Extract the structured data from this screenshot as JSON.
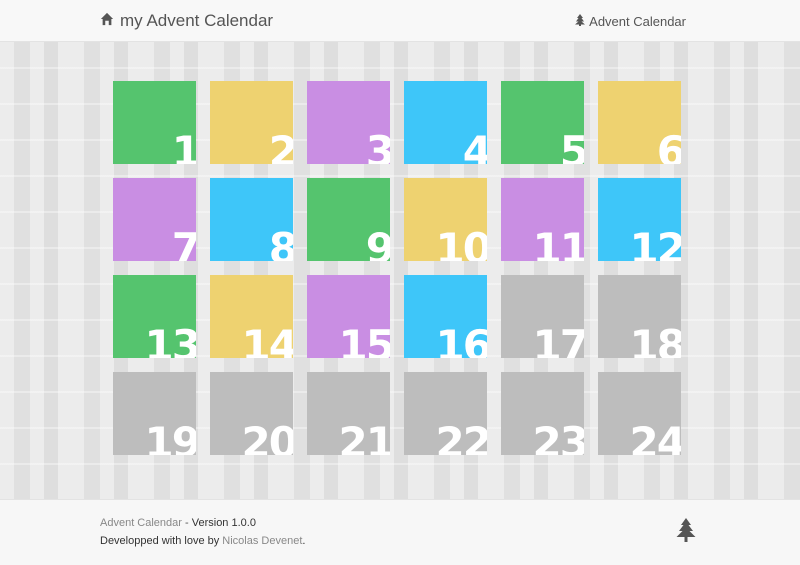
{
  "header": {
    "brand_label": "my Advent Calendar",
    "brand_icon": "home-icon",
    "nav_link_label": "Advent Calendar",
    "nav_link_icon": "tree-icon"
  },
  "colors": {
    "green": "#55c46e",
    "yellow": "#eed270",
    "purple": "#c98ee3",
    "blue": "#3ec6f9",
    "grey": "#bdbdbd"
  },
  "days": [
    {
      "label": "1",
      "color": "green"
    },
    {
      "label": "2",
      "color": "yellow"
    },
    {
      "label": "3",
      "color": "purple"
    },
    {
      "label": "4",
      "color": "blue"
    },
    {
      "label": "5",
      "color": "green"
    },
    {
      "label": "6",
      "color": "yellow"
    },
    {
      "label": "7",
      "color": "purple"
    },
    {
      "label": "8",
      "color": "blue"
    },
    {
      "label": "9",
      "color": "green"
    },
    {
      "label": "10",
      "color": "yellow"
    },
    {
      "label": "11",
      "color": "purple"
    },
    {
      "label": "12",
      "color": "blue"
    },
    {
      "label": "13",
      "color": "green"
    },
    {
      "label": "14",
      "color": "yellow"
    },
    {
      "label": "15",
      "color": "purple"
    },
    {
      "label": "16",
      "color": "blue"
    },
    {
      "label": "17",
      "color": "grey"
    },
    {
      "label": "18",
      "color": "grey"
    },
    {
      "label": "19",
      "color": "grey"
    },
    {
      "label": "20",
      "color": "grey"
    },
    {
      "label": "21",
      "color": "grey"
    },
    {
      "label": "22",
      "color": "grey"
    },
    {
      "label": "23",
      "color": "grey"
    },
    {
      "label": "24",
      "color": "grey"
    }
  ],
  "footer": {
    "app_name": "Advent Calendar",
    "separator": " - ",
    "version": "Version 1.0.0",
    "credit_prefix": "Developped with love by ",
    "author": "Nicolas Devenet",
    "credit_suffix": ".",
    "icon": "tree-icon"
  }
}
